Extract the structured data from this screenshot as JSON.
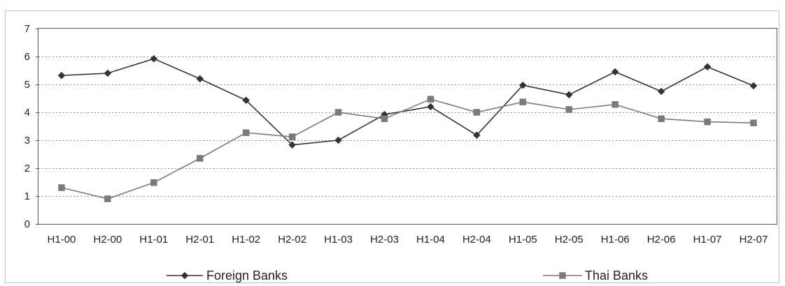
{
  "chart_data": {
    "type": "line",
    "title": "",
    "xlabel": "",
    "ylabel": "",
    "categories": [
      "H1-00",
      "H2-00",
      "H1-01",
      "H2-01",
      "H1-02",
      "H2-02",
      "H1-03",
      "H2-03",
      "H1-04",
      "H2-04",
      "H1-05",
      "H2-05",
      "H1-06",
      "H2-06",
      "H1-07",
      "H2-07"
    ],
    "ylim": [
      0,
      7
    ],
    "yticks": [
      "0",
      "1",
      "2",
      "3",
      "4",
      "5",
      "6",
      "7"
    ],
    "grid": "horizontal dotted",
    "legend_position": "bottom",
    "series": [
      {
        "name": "Foreign Banks",
        "marker": "diamond",
        "color": "#333333",
        "values": [
          5.32,
          5.4,
          5.92,
          5.2,
          4.43,
          2.83,
          3.0,
          3.92,
          4.2,
          3.18,
          4.97,
          4.63,
          5.45,
          4.75,
          5.63,
          4.95
        ]
      },
      {
        "name": "Thai Banks",
        "marker": "square",
        "color": "#7a7a7a",
        "values": [
          1.3,
          0.9,
          1.48,
          2.35,
          3.27,
          3.12,
          4.0,
          3.77,
          4.47,
          4.0,
          4.37,
          4.1,
          4.28,
          3.77,
          3.66,
          3.62
        ]
      }
    ]
  }
}
